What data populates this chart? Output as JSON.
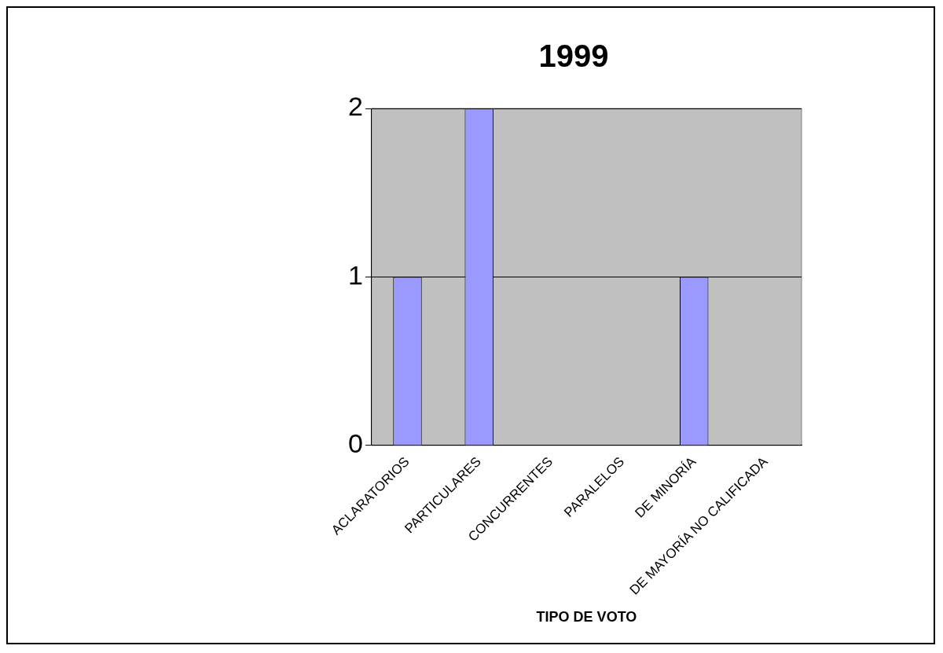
{
  "chart_data": {
    "type": "bar",
    "title": "1999",
    "xlabel": "TIPO DE VOTO",
    "categories": [
      "ACLARATORIOS",
      "PARTICULARES",
      "CONCURRENTES",
      "PARALELOS",
      "DE MINORÍA",
      "DE MAYORÍA NO CALIFICADA"
    ],
    "values": [
      1,
      2,
      0,
      0,
      1,
      0
    ],
    "color": "#9999ff",
    "ylim": [
      0,
      2
    ],
    "yticks": [
      0,
      1,
      2
    ],
    "grid": "y",
    "legend": false
  }
}
